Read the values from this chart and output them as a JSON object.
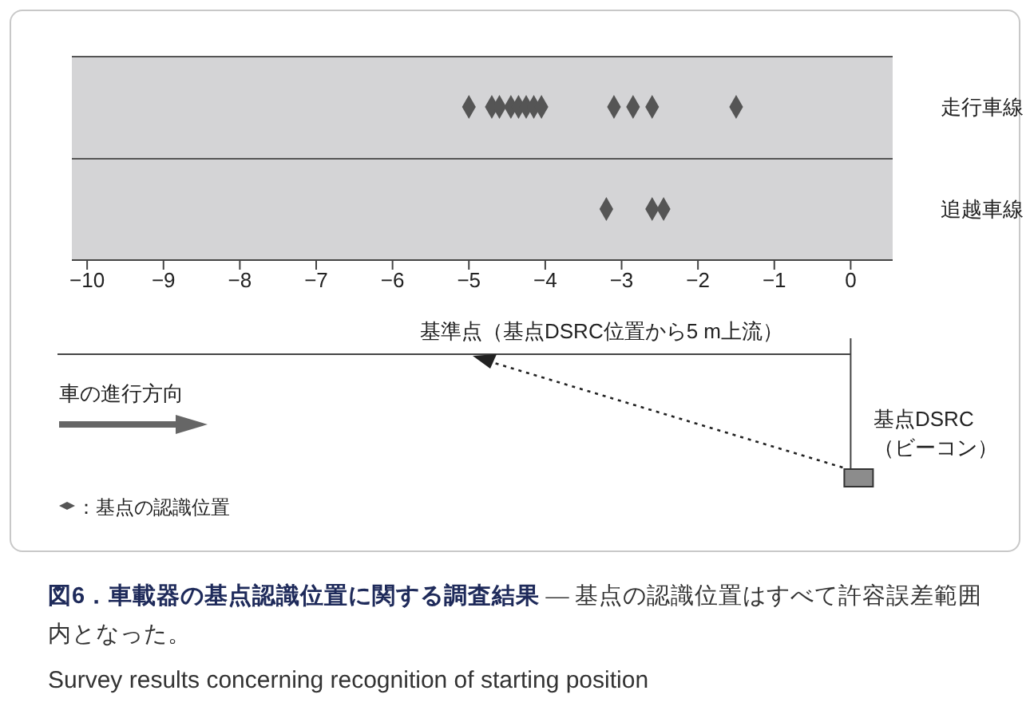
{
  "chart_data": {
    "type": "scatter",
    "orientation": "horizontal",
    "title": "図6．車載器の基点認識位置に関する調査結果",
    "subtitle": "— 基点の認識位置はすべて許容誤差範囲内となった。",
    "annotations": [
      "基準点（基点DSRC位置から5 m上流）",
      "車の進行方向",
      "基点DSRC\n（ビーコン）",
      "：基点の認識位置",
      "Survey results concerning recognition of starting position"
    ],
    "categories": [
      "走行車線",
      "追越車線"
    ],
    "xlim": [
      -10.2,
      0.55
    ],
    "xticks": [
      -10,
      -9,
      -8,
      -7,
      -6,
      -5,
      -4,
      -3,
      -2,
      -1,
      0
    ],
    "marker": "diamond",
    "series": [
      {
        "color": "#555555",
        "x": [
          "走行車線",
          "走行車線",
          "走行車線",
          "走行車線",
          "走行車線",
          "走行車線",
          "走行車線",
          "走行車線",
          "走行車線",
          "走行車線",
          "走行車線",
          "走行車線",
          "追越車線",
          "追越車線",
          "追越車線"
        ],
        "values": [
          -5.0,
          -4.7,
          -4.6,
          -4.45,
          -4.35,
          -4.25,
          -4.15,
          -4.05,
          -3.1,
          -2.85,
          -2.6,
          -1.5,
          -3.2,
          -2.6,
          -2.45
        ]
      }
    ]
  }
}
